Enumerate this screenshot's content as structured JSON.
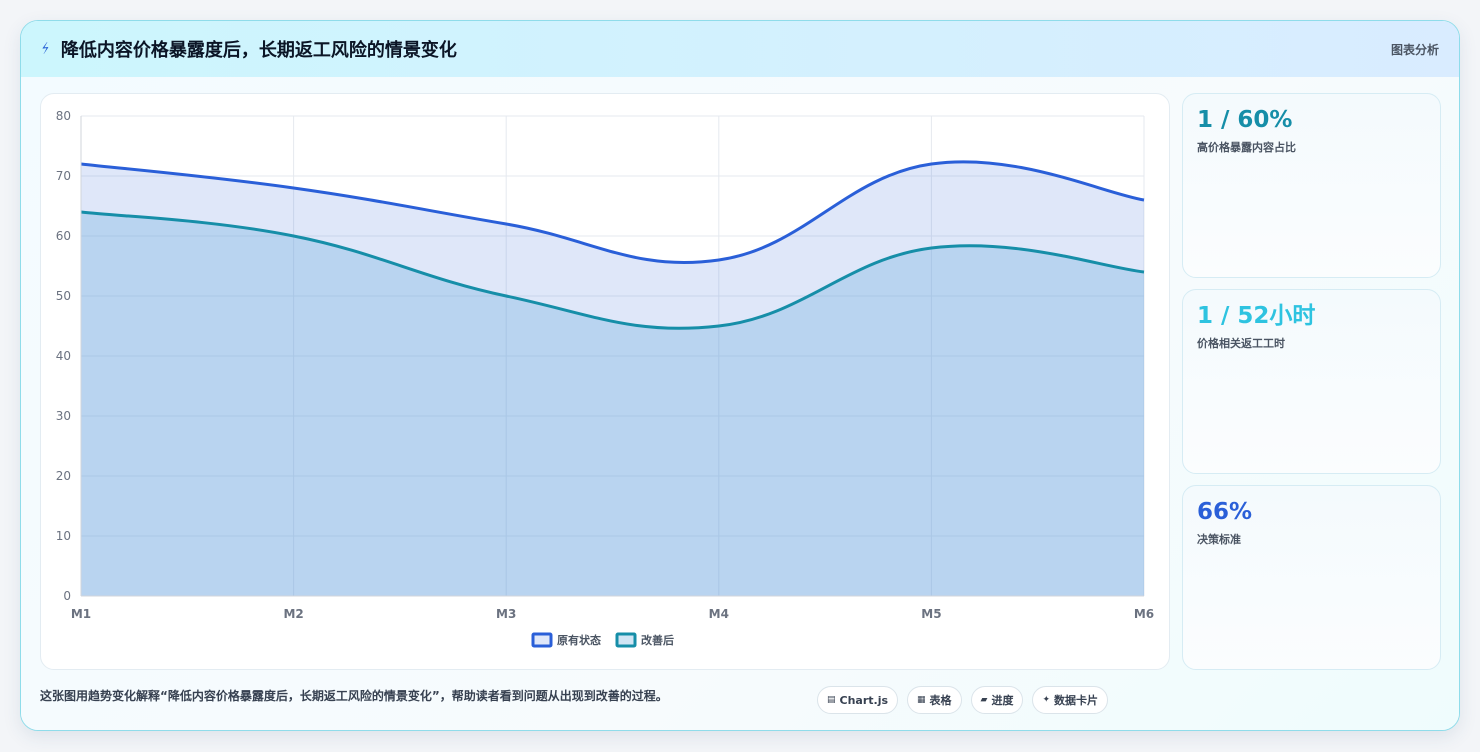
{
  "header": {
    "title": "降低内容价格暴露度后，长期返工风险的情景变化",
    "tag": "图表分析"
  },
  "stats": [
    {
      "value": "1 / 60%",
      "label": "高价格暴露内容占比",
      "color": "#168ea8"
    },
    {
      "value": "1 / 52小时",
      "label": "价格相关返工工时",
      "color": "#2ec3e0"
    },
    {
      "value": "66%",
      "label": "决策标准",
      "color": "#2a5fd8"
    }
  ],
  "footer": {
    "caption": "这张图用趋势变化解释“降低内容价格暴露度后，长期返工风险的情景变化”，帮助读者看到问题从出现到改善的过程。",
    "pills": [
      {
        "icon": "chart-icon",
        "glyph": "▤",
        "label": "Chart.js"
      },
      {
        "icon": "table-icon",
        "glyph": "▦",
        "label": "表格"
      },
      {
        "icon": "progress-icon",
        "glyph": "▰",
        "label": "进度"
      },
      {
        "icon": "card-icon",
        "glyph": "✦",
        "label": "数据卡片"
      }
    ]
  },
  "chart_data": {
    "type": "area",
    "categories": [
      "M1",
      "M2",
      "M3",
      "M4",
      "M5",
      "M6"
    ],
    "series": [
      {
        "name": "原有状态",
        "values": [
          72,
          68,
          62,
          56,
          72,
          66
        ],
        "color": "#2a5fd8",
        "fill": "rgba(42,95,216,0.15)"
      },
      {
        "name": "改善后",
        "values": [
          64,
          60,
          50,
          45,
          58,
          54
        ],
        "color": "#168ea8",
        "fill": "rgba(100,170,220,0.30)"
      }
    ],
    "ylim": [
      0,
      80
    ],
    "yticks": [
      0,
      10,
      20,
      30,
      40,
      50,
      60,
      70,
      80
    ],
    "grid": true,
    "legend": "bottom"
  }
}
